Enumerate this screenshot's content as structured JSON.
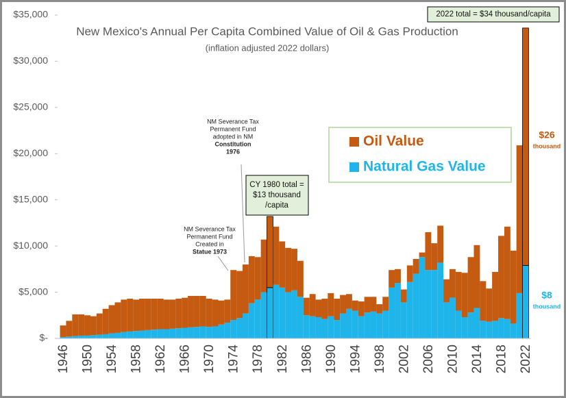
{
  "chart_data": {
    "type": "stacked_bar",
    "title": "New Mexico's Annual Per Capita Combined Value of Oil & Gas Production",
    "subtitle": "(inflation adjusted 2022 dollars)",
    "categories": [
      "1946",
      null,
      null,
      null,
      "1950",
      null,
      null,
      null,
      "1954",
      null,
      null,
      null,
      "1958",
      null,
      null,
      null,
      "1962",
      null,
      null,
      null,
      "1966",
      null,
      null,
      null,
      "1970",
      null,
      null,
      null,
      "1974",
      null,
      null,
      null,
      "1978",
      null,
      null,
      null,
      "1982",
      null,
      null,
      null,
      "1986",
      null,
      null,
      null,
      "1990",
      null,
      null,
      null,
      "1994",
      null,
      null,
      null,
      "1998",
      null,
      null,
      null,
      "2002",
      null,
      null,
      null,
      "2006",
      null,
      null,
      null,
      "2010",
      null,
      null,
      null,
      "2014",
      null,
      null,
      null,
      "2018",
      null,
      null,
      null,
      "2022"
    ],
    "series": [
      {
        "name": "Natural Gas Value",
        "color": "#1fb5ea",
        "values": [
          150,
          200,
          250,
          300,
          300,
          350,
          400,
          450,
          550,
          600,
          700,
          750,
          800,
          850,
          900,
          950,
          1000,
          1000,
          1050,
          1100,
          1150,
          1200,
          1250,
          1300,
          1250,
          1300,
          1500,
          1700,
          2000,
          2200,
          2700,
          3800,
          4200,
          5000,
          5500,
          5800,
          5500,
          5000,
          5200,
          4500,
          2500,
          2400,
          2300,
          2100,
          2400,
          2000,
          2700,
          3200,
          3000,
          2400,
          2800,
          2900,
          2700,
          3000,
          5500,
          6000,
          3900,
          6100,
          7000,
          8800,
          7400,
          7400,
          8200,
          3900,
          4400,
          3000,
          2300,
          2800,
          3300,
          1900,
          1800,
          1900,
          2200,
          2100,
          1600,
          4900,
          7900
        ]
      },
      {
        "name": "Oil Value",
        "color": "#c55a11",
        "values": [
          1250,
          1700,
          2350,
          2300,
          2200,
          2050,
          2300,
          2750,
          3050,
          3300,
          3500,
          3550,
          3400,
          3450,
          3400,
          3350,
          3300,
          3200,
          3150,
          3200,
          3250,
          3400,
          3350,
          3300,
          3050,
          2900,
          2600,
          2500,
          5400,
          5100,
          5300,
          5100,
          4600,
          5700,
          7700,
          6300,
          5000,
          4800,
          4500,
          3900,
          1900,
          2400,
          1900,
          2200,
          2500,
          2300,
          2000,
          1600,
          1100,
          1600,
          1700,
          1600,
          1000,
          1500,
          1900,
          1500,
          1400,
          1800,
          1600,
          500,
          4100,
          2900,
          4000,
          2500,
          3100,
          4200,
          4800,
          6000,
          6800,
          4300,
          3600,
          5300,
          8900,
          10000,
          7900,
          16000,
          25700
        ]
      }
    ],
    "ylim": [
      0,
      35000
    ],
    "yticks": [
      {
        "value": 0,
        "label": "$-"
      },
      {
        "value": 5000,
        "label": "$5,000"
      },
      {
        "value": 10000,
        "label": "$10,000"
      },
      {
        "value": 15000,
        "label": "$15,000"
      },
      {
        "value": 20000,
        "label": "$20,000"
      },
      {
        "value": 25000,
        "label": "$25,000"
      },
      {
        "value": 30000,
        "label": "$30,000"
      },
      {
        "value": 35000,
        "label": "$35,000"
      }
    ],
    "annotations": {
      "statute": [
        "NM Severance Tax",
        "Permanent Fund",
        "Created in",
        "Statue 1973"
      ],
      "constitution": [
        "NM Severance Tax",
        "Permanent Fund",
        "adopted in NM",
        "Constitution",
        "1976"
      ],
      "cy1980": [
        "CY 1980 total =",
        "$13 thousand",
        "/capita"
      ],
      "total2022": "2022 total = $34 thousand/capita",
      "oil2022": [
        "$26",
        "thousand"
      ],
      "gas2022": [
        "$8",
        "thousand"
      ]
    }
  }
}
